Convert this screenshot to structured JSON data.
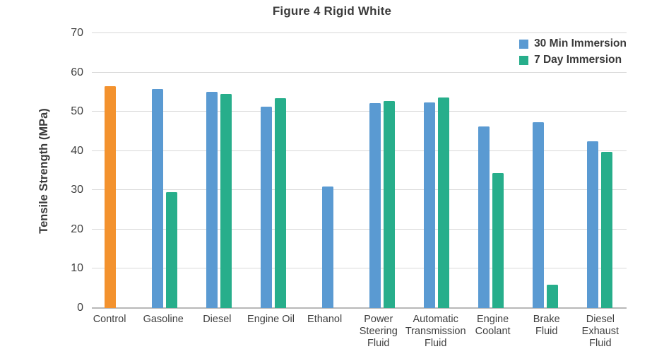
{
  "chart_data": {
    "type": "bar",
    "title": "Figure 4 Rigid White",
    "ylabel": "Tensile Strength (MPa)",
    "xlabel": "",
    "ylim": [
      0,
      70
    ],
    "yticks": [
      0,
      10,
      20,
      30,
      40,
      50,
      60,
      70
    ],
    "grid": "horizontal",
    "legend_position": "top-right",
    "colors": {
      "blue": "#5A9AD2",
      "green": "#27AE8B",
      "orange": "#F3922E",
      "gridline": "#D8D8D8",
      "baseline": "#B8B8B8",
      "text": "#3B3B3B"
    },
    "legend": [
      {
        "label": "30 Min Immersion",
        "color": "#5A9AD2"
      },
      {
        "label": "7 Day Immersion",
        "color": "#27AE8B"
      }
    ],
    "categories": [
      "Control",
      "Gasoline",
      "Diesel",
      "Engine Oil",
      "Ethanol",
      "Power Steering Fluid",
      "Automatic Transmission Fluid",
      "Engine Coolant",
      "Brake Fluid",
      "Diesel Exhaust Fluid"
    ],
    "groups": [
      {
        "label": "Control",
        "bars": [
          {
            "series": "Control",
            "value": 56.5,
            "color": "#F3922E"
          }
        ]
      },
      {
        "label": "Gasoline",
        "bars": [
          {
            "series": "30 Min Immersion",
            "value": 55.8,
            "color": "#5A9AD2"
          },
          {
            "series": "7 Day Immersion",
            "value": 29.6,
            "color": "#27AE8B"
          }
        ]
      },
      {
        "label": "Diesel",
        "bars": [
          {
            "series": "30 Min Immersion",
            "value": 55.0,
            "color": "#5A9AD2"
          },
          {
            "series": "7 Day Immersion",
            "value": 54.6,
            "color": "#27AE8B"
          }
        ]
      },
      {
        "label": "Engine Oil",
        "bars": [
          {
            "series": "30 Min Immersion",
            "value": 51.3,
            "color": "#5A9AD2"
          },
          {
            "series": "7 Day Immersion",
            "value": 53.4,
            "color": "#27AE8B"
          }
        ]
      },
      {
        "label": "Ethanol",
        "bars": [
          {
            "series": "30 Min Immersion",
            "value": 30.9,
            "color": "#5A9AD2"
          }
        ]
      },
      {
        "label": "Power\nSteering\nFluid",
        "bars": [
          {
            "series": "30 Min Immersion",
            "value": 52.1,
            "color": "#5A9AD2"
          },
          {
            "series": "7 Day Immersion",
            "value": 52.7,
            "color": "#27AE8B"
          }
        ]
      },
      {
        "label": "Automatic\nTransmission\nFluid",
        "bars": [
          {
            "series": "30 Min Immersion",
            "value": 52.3,
            "color": "#5A9AD2"
          },
          {
            "series": "7 Day Immersion",
            "value": 53.6,
            "color": "#27AE8B"
          }
        ]
      },
      {
        "label": "Engine\nCoolant",
        "bars": [
          {
            "series": "30 Min Immersion",
            "value": 46.3,
            "color": "#5A9AD2"
          },
          {
            "series": "7 Day Immersion",
            "value": 34.3,
            "color": "#27AE8B"
          }
        ]
      },
      {
        "label": "Brake\nFluid",
        "bars": [
          {
            "series": "30 Min Immersion",
            "value": 47.4,
            "color": "#5A9AD2"
          },
          {
            "series": "7 Day Immersion",
            "value": 5.9,
            "color": "#27AE8B"
          }
        ]
      },
      {
        "label": "Diesel\nExhaust\nFluid",
        "bars": [
          {
            "series": "30 Min Immersion",
            "value": 42.5,
            "color": "#5A9AD2"
          },
          {
            "series": "7 Day Immersion",
            "value": 39.8,
            "color": "#27AE8B"
          }
        ]
      }
    ]
  }
}
